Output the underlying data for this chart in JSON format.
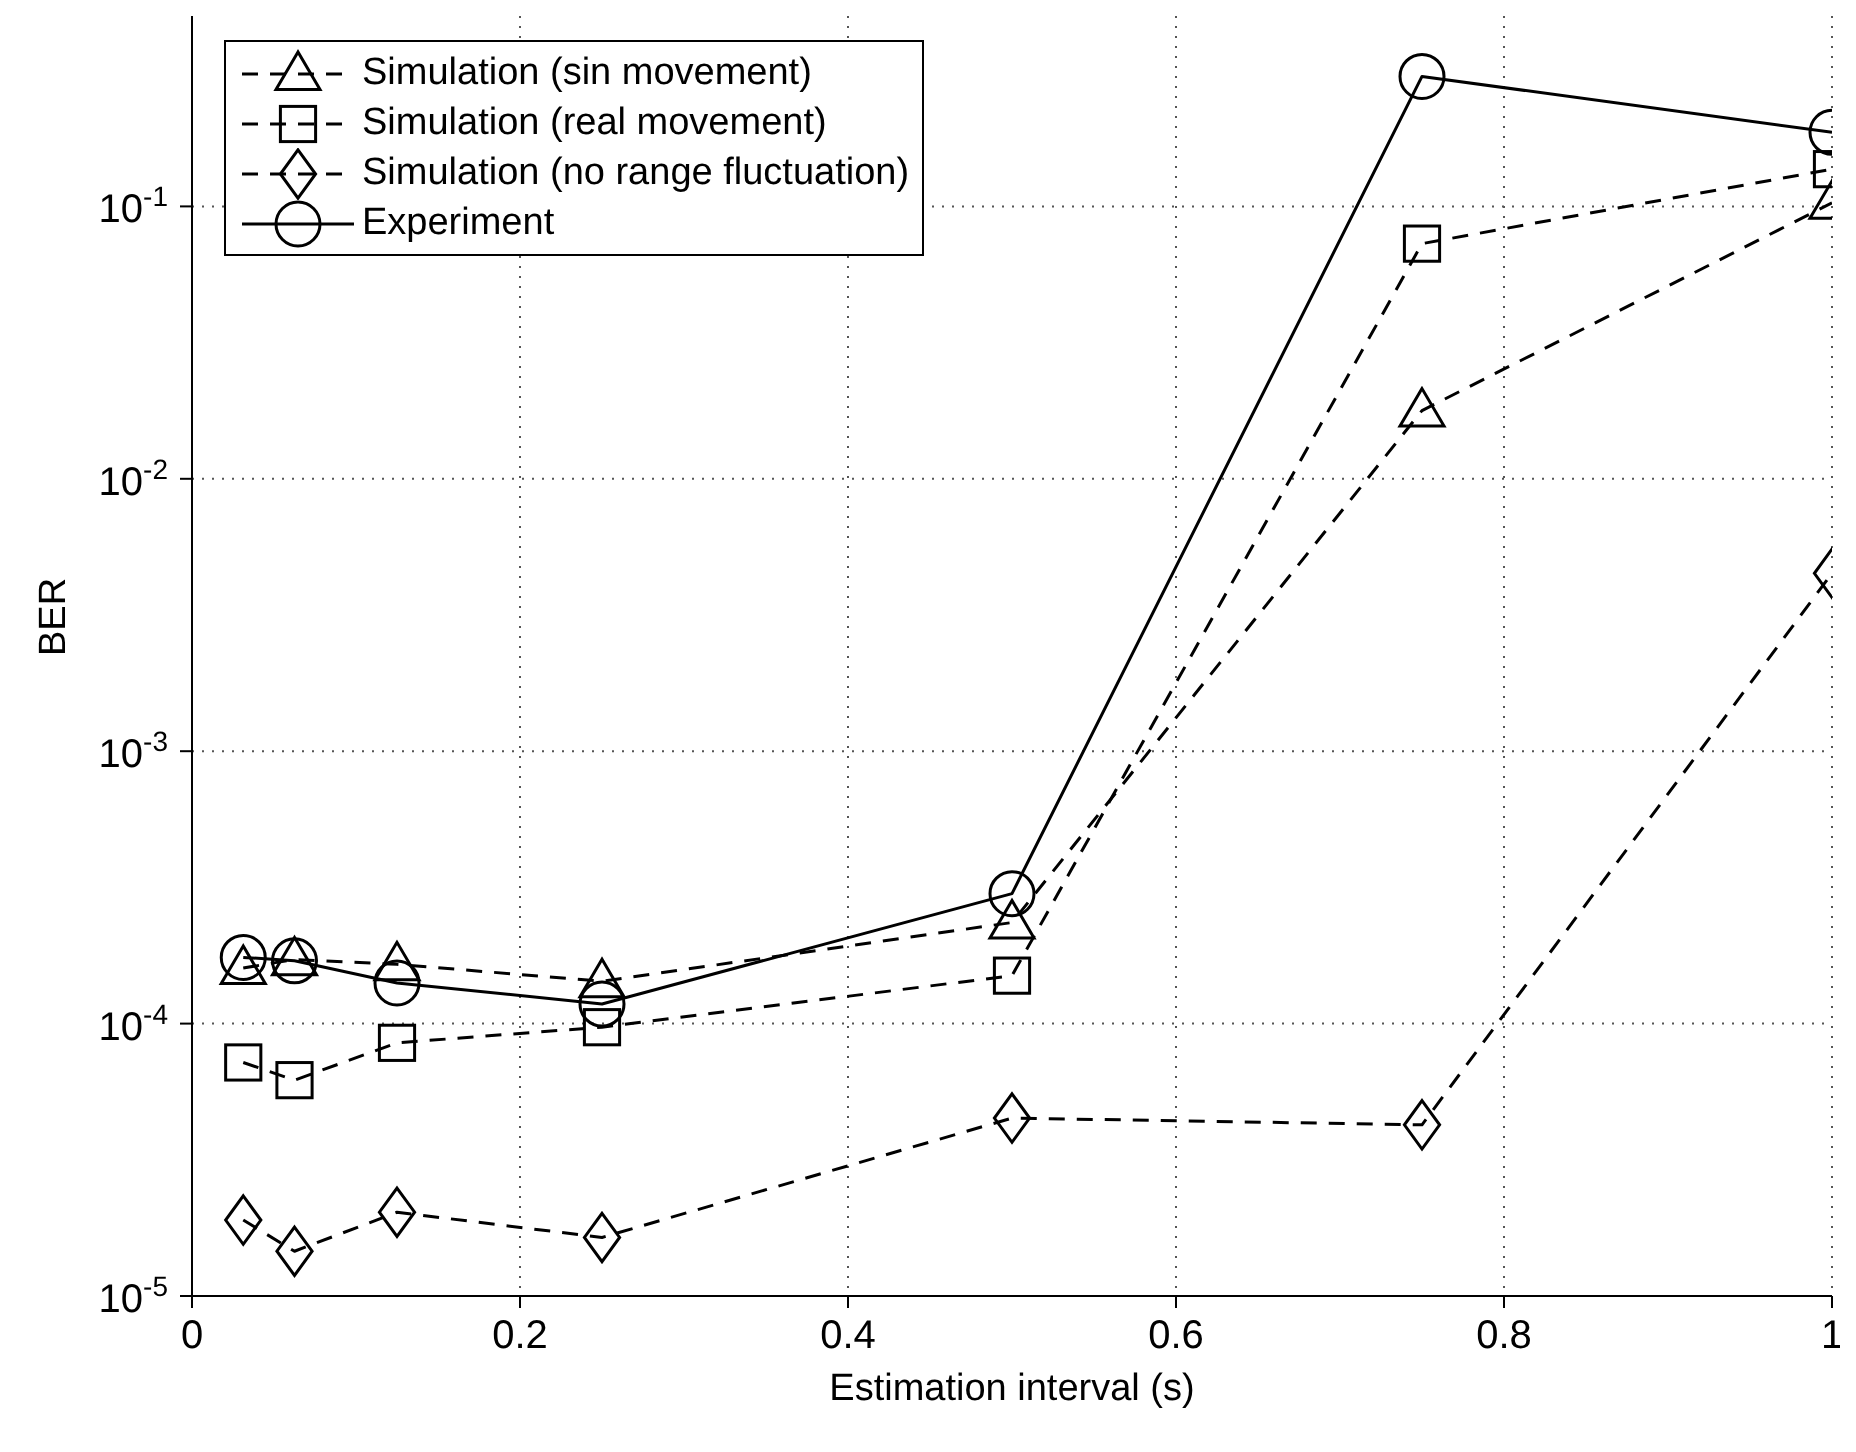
{
  "chart_data": {
    "type": "line",
    "xlabel": "Estimation interval (s)",
    "ylabel": "BER",
    "x": [
      0.03125,
      0.0625,
      0.125,
      0.25,
      0.5,
      0.75,
      1
    ],
    "series": [
      {
        "name": "Simulation (sin movement)",
        "color": "#000000",
        "marker": "triangle",
        "line_style": "dashed",
        "values": [
          0.00016,
          0.000172,
          0.000165,
          0.000143,
          0.000235,
          0.0178,
          0.103
        ]
      },
      {
        "name": "Simulation (real movement)",
        "color": "#000000",
        "marker": "square",
        "line_style": "dashed",
        "values": [
          7.2e-05,
          6.2e-05,
          8.5e-05,
          9.7e-05,
          0.00015,
          0.073,
          0.137
        ]
      },
      {
        "name": "Simulation (no range fluctuation)",
        "color": "#000000",
        "marker": "diamond",
        "line_style": "dashed",
        "values": [
          1.9e-05,
          1.46e-05,
          2.03e-05,
          1.64e-05,
          4.5e-05,
          4.25e-05,
          0.0045
        ]
      },
      {
        "name": "Experiment",
        "color": "#000000",
        "marker": "circle",
        "line_style": "solid",
        "values": [
          0.000175,
          0.00017,
          0.000141,
          0.000118,
          0.0003,
          0.3,
          0.187
        ]
      }
    ],
    "log": "y",
    "xlim": [
      0,
      1
    ],
    "xticks": [
      0,
      0.2,
      0.4,
      0.6,
      0.8,
      1
    ],
    "ylim": [
      1e-05,
      0.5
    ],
    "yticks": [
      {
        "value": 1e-05,
        "label": "10$^{-5}$"
      },
      {
        "value": 0.0001,
        "label": "10$^{-4}$"
      },
      {
        "value": 0.001,
        "label": "10$^{-3}$"
      },
      {
        "value": 0.01,
        "label": "10$^{-2}$"
      },
      {
        "value": 0.1,
        "label": "10$^{-1}$"
      }
    ],
    "grid": true,
    "legend": "top left"
  }
}
